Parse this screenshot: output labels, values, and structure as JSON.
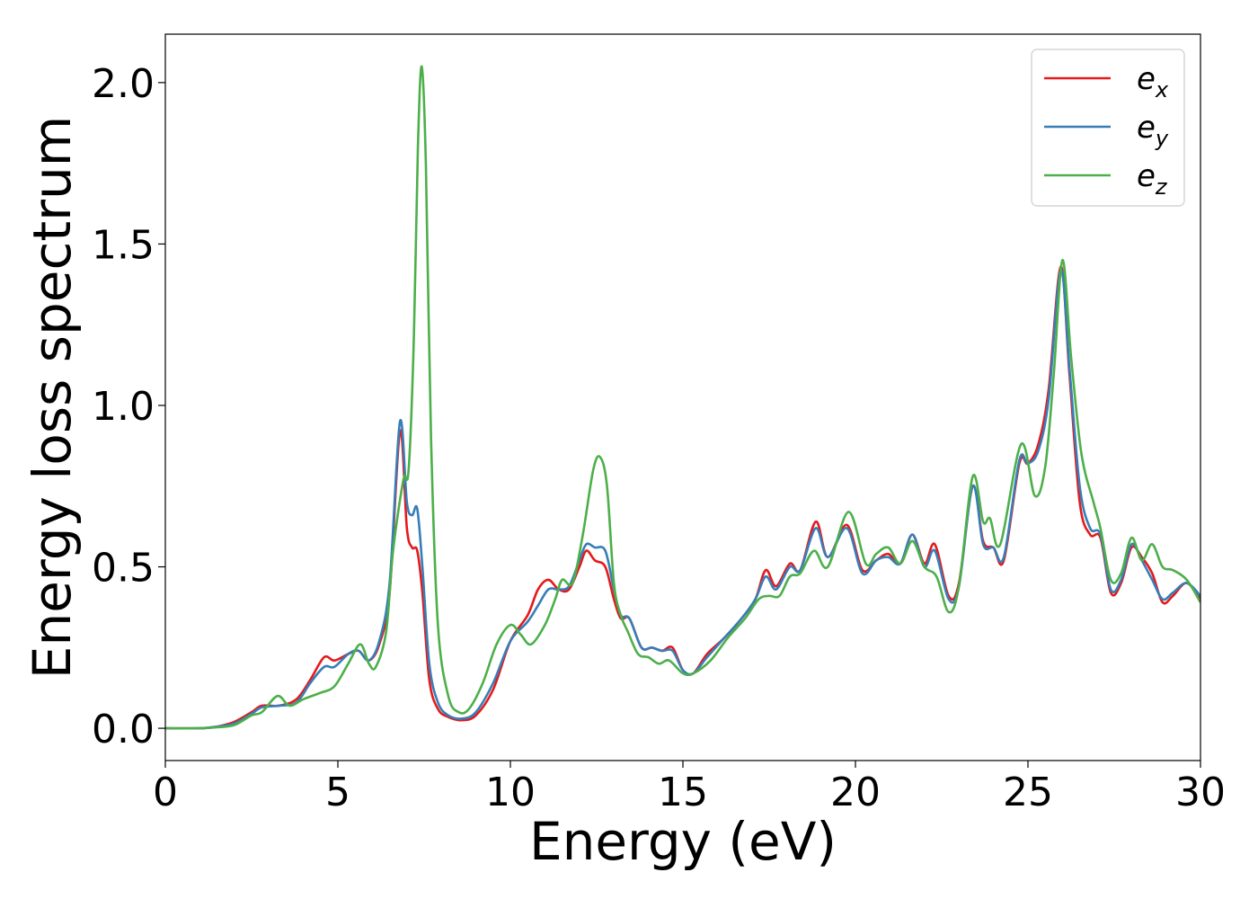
{
  "chart_data": {
    "type": "line",
    "title": "",
    "xlabel": "Energy (eV)",
    "ylabel": "Energy loss spectrum",
    "xlim": [
      0,
      30
    ],
    "ylim": [
      -0.1,
      2.15
    ],
    "xticks": [
      0,
      5,
      10,
      15,
      20,
      25,
      30
    ],
    "xtick_labels": [
      "0",
      "5",
      "10",
      "15",
      "20",
      "25",
      "30"
    ],
    "yticks": [
      0.0,
      0.5,
      1.0,
      1.5,
      2.0
    ],
    "ytick_labels": [
      "0.0",
      "0.5",
      "1.0",
      "1.5",
      "2.0"
    ],
    "grid": false,
    "legend_position": "top-right",
    "series": [
      {
        "name": "e_x",
        "legend_main": "e",
        "legend_sub": "x",
        "color": "#e41a1c",
        "points": [
          [
            0,
            0
          ],
          [
            1,
            0.0
          ],
          [
            1.5,
            0.005
          ],
          [
            2,
            0.02
          ],
          [
            2.5,
            0.05
          ],
          [
            2.8,
            0.07
          ],
          [
            3.3,
            0.07
          ],
          [
            3.8,
            0.09
          ],
          [
            4.2,
            0.15
          ],
          [
            4.6,
            0.22
          ],
          [
            4.9,
            0.21
          ],
          [
            5.3,
            0.23
          ],
          [
            5.6,
            0.24
          ],
          [
            5.9,
            0.21
          ],
          [
            6.2,
            0.26
          ],
          [
            6.5,
            0.42
          ],
          [
            6.8,
            0.92
          ],
          [
            7.0,
            0.62
          ],
          [
            7.15,
            0.56
          ],
          [
            7.3,
            0.55
          ],
          [
            7.45,
            0.42
          ],
          [
            7.65,
            0.15
          ],
          [
            7.9,
            0.06
          ],
          [
            8.2,
            0.035
          ],
          [
            8.6,
            0.025
          ],
          [
            9.0,
            0.04
          ],
          [
            9.5,
            0.12
          ],
          [
            10.0,
            0.27
          ],
          [
            10.5,
            0.35
          ],
          [
            10.8,
            0.43
          ],
          [
            11.1,
            0.46
          ],
          [
            11.4,
            0.43
          ],
          [
            11.7,
            0.43
          ],
          [
            12.0,
            0.5
          ],
          [
            12.2,
            0.55
          ],
          [
            12.45,
            0.52
          ],
          [
            12.75,
            0.5
          ],
          [
            13.0,
            0.4
          ],
          [
            13.2,
            0.34
          ],
          [
            13.45,
            0.34
          ],
          [
            13.8,
            0.25
          ],
          [
            14.1,
            0.25
          ],
          [
            14.4,
            0.24
          ],
          [
            14.7,
            0.25
          ],
          [
            15.0,
            0.18
          ],
          [
            15.3,
            0.17
          ],
          [
            15.7,
            0.23
          ],
          [
            16.2,
            0.28
          ],
          [
            16.7,
            0.34
          ],
          [
            17.1,
            0.4
          ],
          [
            17.4,
            0.49
          ],
          [
            17.7,
            0.44
          ],
          [
            18.1,
            0.51
          ],
          [
            18.4,
            0.49
          ],
          [
            18.85,
            0.64
          ],
          [
            19.2,
            0.53
          ],
          [
            19.75,
            0.63
          ],
          [
            20.2,
            0.49
          ],
          [
            20.6,
            0.52
          ],
          [
            20.95,
            0.54
          ],
          [
            21.3,
            0.51
          ],
          [
            21.65,
            0.6
          ],
          [
            22.0,
            0.51
          ],
          [
            22.3,
            0.57
          ],
          [
            22.7,
            0.41
          ],
          [
            23.0,
            0.45
          ],
          [
            23.4,
            0.75
          ],
          [
            23.7,
            0.58
          ],
          [
            24.0,
            0.56
          ],
          [
            24.3,
            0.52
          ],
          [
            24.75,
            0.82
          ],
          [
            25.0,
            0.82
          ],
          [
            25.3,
            0.88
          ],
          [
            25.6,
            1.05
          ],
          [
            25.95,
            1.43
          ],
          [
            26.2,
            1.1
          ],
          [
            26.5,
            0.7
          ],
          [
            26.8,
            0.6
          ],
          [
            27.1,
            0.59
          ],
          [
            27.4,
            0.42
          ],
          [
            27.7,
            0.45
          ],
          [
            28.0,
            0.56
          ],
          [
            28.3,
            0.53
          ],
          [
            28.6,
            0.48
          ],
          [
            28.9,
            0.39
          ],
          [
            29.2,
            0.41
          ],
          [
            29.6,
            0.45
          ],
          [
            30.0,
            0.4
          ]
        ]
      },
      {
        "name": "e_y",
        "legend_main": "e",
        "legend_sub": "y",
        "color": "#377eb8",
        "points": [
          [
            0,
            0
          ],
          [
            1,
            0.0
          ],
          [
            1.5,
            0.005
          ],
          [
            2,
            0.015
          ],
          [
            2.5,
            0.045
          ],
          [
            2.8,
            0.065
          ],
          [
            3.3,
            0.07
          ],
          [
            3.8,
            0.08
          ],
          [
            4.2,
            0.14
          ],
          [
            4.6,
            0.19
          ],
          [
            4.9,
            0.19
          ],
          [
            5.3,
            0.23
          ],
          [
            5.6,
            0.24
          ],
          [
            5.9,
            0.21
          ],
          [
            6.2,
            0.27
          ],
          [
            6.5,
            0.45
          ],
          [
            6.8,
            0.95
          ],
          [
            7.0,
            0.7
          ],
          [
            7.15,
            0.66
          ],
          [
            7.3,
            0.68
          ],
          [
            7.45,
            0.5
          ],
          [
            7.65,
            0.2
          ],
          [
            7.9,
            0.08
          ],
          [
            8.2,
            0.04
          ],
          [
            8.6,
            0.03
          ],
          [
            9.0,
            0.05
          ],
          [
            9.5,
            0.14
          ],
          [
            10.0,
            0.27
          ],
          [
            10.5,
            0.33
          ],
          [
            10.8,
            0.38
          ],
          [
            11.1,
            0.43
          ],
          [
            11.4,
            0.43
          ],
          [
            11.7,
            0.44
          ],
          [
            12.0,
            0.52
          ],
          [
            12.2,
            0.57
          ],
          [
            12.45,
            0.56
          ],
          [
            12.75,
            0.55
          ],
          [
            13.0,
            0.43
          ],
          [
            13.2,
            0.35
          ],
          [
            13.45,
            0.34
          ],
          [
            13.8,
            0.25
          ],
          [
            14.1,
            0.25
          ],
          [
            14.4,
            0.24
          ],
          [
            14.7,
            0.24
          ],
          [
            15.0,
            0.18
          ],
          [
            15.3,
            0.17
          ],
          [
            15.7,
            0.22
          ],
          [
            16.2,
            0.28
          ],
          [
            16.7,
            0.34
          ],
          [
            17.1,
            0.4
          ],
          [
            17.4,
            0.47
          ],
          [
            17.7,
            0.43
          ],
          [
            18.1,
            0.5
          ],
          [
            18.4,
            0.49
          ],
          [
            18.85,
            0.62
          ],
          [
            19.2,
            0.53
          ],
          [
            19.75,
            0.62
          ],
          [
            20.2,
            0.48
          ],
          [
            20.6,
            0.52
          ],
          [
            20.95,
            0.53
          ],
          [
            21.3,
            0.51
          ],
          [
            21.65,
            0.6
          ],
          [
            22.0,
            0.5
          ],
          [
            22.3,
            0.55
          ],
          [
            22.7,
            0.4
          ],
          [
            23.0,
            0.44
          ],
          [
            23.4,
            0.75
          ],
          [
            23.7,
            0.57
          ],
          [
            24.0,
            0.56
          ],
          [
            24.3,
            0.53
          ],
          [
            24.75,
            0.83
          ],
          [
            25.0,
            0.82
          ],
          [
            25.3,
            0.86
          ],
          [
            25.6,
            1.02
          ],
          [
            25.95,
            1.42
          ],
          [
            26.2,
            1.12
          ],
          [
            26.5,
            0.75
          ],
          [
            26.8,
            0.62
          ],
          [
            27.1,
            0.6
          ],
          [
            27.4,
            0.43
          ],
          [
            27.7,
            0.46
          ],
          [
            28.0,
            0.57
          ],
          [
            28.3,
            0.52
          ],
          [
            28.6,
            0.46
          ],
          [
            28.9,
            0.4
          ],
          [
            29.2,
            0.42
          ],
          [
            29.6,
            0.45
          ],
          [
            30.0,
            0.41
          ]
        ]
      },
      {
        "name": "e_z",
        "legend_main": "e",
        "legend_sub": "z",
        "color": "#4daf4a",
        "points": [
          [
            0,
            0
          ],
          [
            1,
            0.0
          ],
          [
            1.5,
            0.003
          ],
          [
            2,
            0.01
          ],
          [
            2.5,
            0.04
          ],
          [
            2.8,
            0.05
          ],
          [
            3.25,
            0.1
          ],
          [
            3.6,
            0.07
          ],
          [
            4.0,
            0.09
          ],
          [
            4.5,
            0.11
          ],
          [
            4.9,
            0.13
          ],
          [
            5.3,
            0.2
          ],
          [
            5.65,
            0.26
          ],
          [
            5.9,
            0.2
          ],
          [
            6.1,
            0.19
          ],
          [
            6.4,
            0.3
          ],
          [
            6.6,
            0.55
          ],
          [
            6.9,
            0.77
          ],
          [
            7.05,
            0.8
          ],
          [
            7.2,
            1.2
          ],
          [
            7.32,
            1.8
          ],
          [
            7.43,
            2.05
          ],
          [
            7.55,
            1.75
          ],
          [
            7.7,
            0.9
          ],
          [
            7.9,
            0.32
          ],
          [
            8.2,
            0.1
          ],
          [
            8.5,
            0.05
          ],
          [
            8.8,
            0.06
          ],
          [
            9.2,
            0.14
          ],
          [
            9.6,
            0.26
          ],
          [
            10.0,
            0.32
          ],
          [
            10.3,
            0.29
          ],
          [
            10.6,
            0.26
          ],
          [
            11.0,
            0.32
          ],
          [
            11.3,
            0.4
          ],
          [
            11.5,
            0.46
          ],
          [
            11.8,
            0.45
          ],
          [
            12.1,
            0.6
          ],
          [
            12.4,
            0.8
          ],
          [
            12.6,
            0.84
          ],
          [
            12.8,
            0.75
          ],
          [
            13.0,
            0.45
          ],
          [
            13.2,
            0.35
          ],
          [
            13.4,
            0.3
          ],
          [
            13.7,
            0.23
          ],
          [
            14.0,
            0.22
          ],
          [
            14.3,
            0.2
          ],
          [
            14.6,
            0.21
          ],
          [
            15.0,
            0.17
          ],
          [
            15.3,
            0.17
          ],
          [
            15.8,
            0.21
          ],
          [
            16.3,
            0.28
          ],
          [
            16.8,
            0.34
          ],
          [
            17.2,
            0.4
          ],
          [
            17.5,
            0.41
          ],
          [
            17.8,
            0.41
          ],
          [
            18.1,
            0.47
          ],
          [
            18.4,
            0.48
          ],
          [
            18.8,
            0.55
          ],
          [
            19.2,
            0.5
          ],
          [
            19.8,
            0.67
          ],
          [
            20.3,
            0.51
          ],
          [
            20.6,
            0.54
          ],
          [
            20.95,
            0.56
          ],
          [
            21.3,
            0.51
          ],
          [
            21.65,
            0.58
          ],
          [
            22.0,
            0.5
          ],
          [
            22.35,
            0.47
          ],
          [
            22.7,
            0.36
          ],
          [
            23.0,
            0.44
          ],
          [
            23.4,
            0.78
          ],
          [
            23.7,
            0.64
          ],
          [
            23.9,
            0.65
          ],
          [
            24.2,
            0.57
          ],
          [
            24.8,
            0.88
          ],
          [
            25.2,
            0.72
          ],
          [
            25.5,
            0.81
          ],
          [
            25.75,
            1.1
          ],
          [
            26.0,
            1.45
          ],
          [
            26.25,
            1.15
          ],
          [
            26.55,
            0.85
          ],
          [
            26.9,
            0.7
          ],
          [
            27.1,
            0.62
          ],
          [
            27.4,
            0.46
          ],
          [
            27.7,
            0.48
          ],
          [
            28.0,
            0.59
          ],
          [
            28.3,
            0.52
          ],
          [
            28.6,
            0.57
          ],
          [
            28.9,
            0.5
          ],
          [
            29.2,
            0.49
          ],
          [
            29.6,
            0.46
          ],
          [
            30.0,
            0.39
          ]
        ]
      }
    ]
  }
}
